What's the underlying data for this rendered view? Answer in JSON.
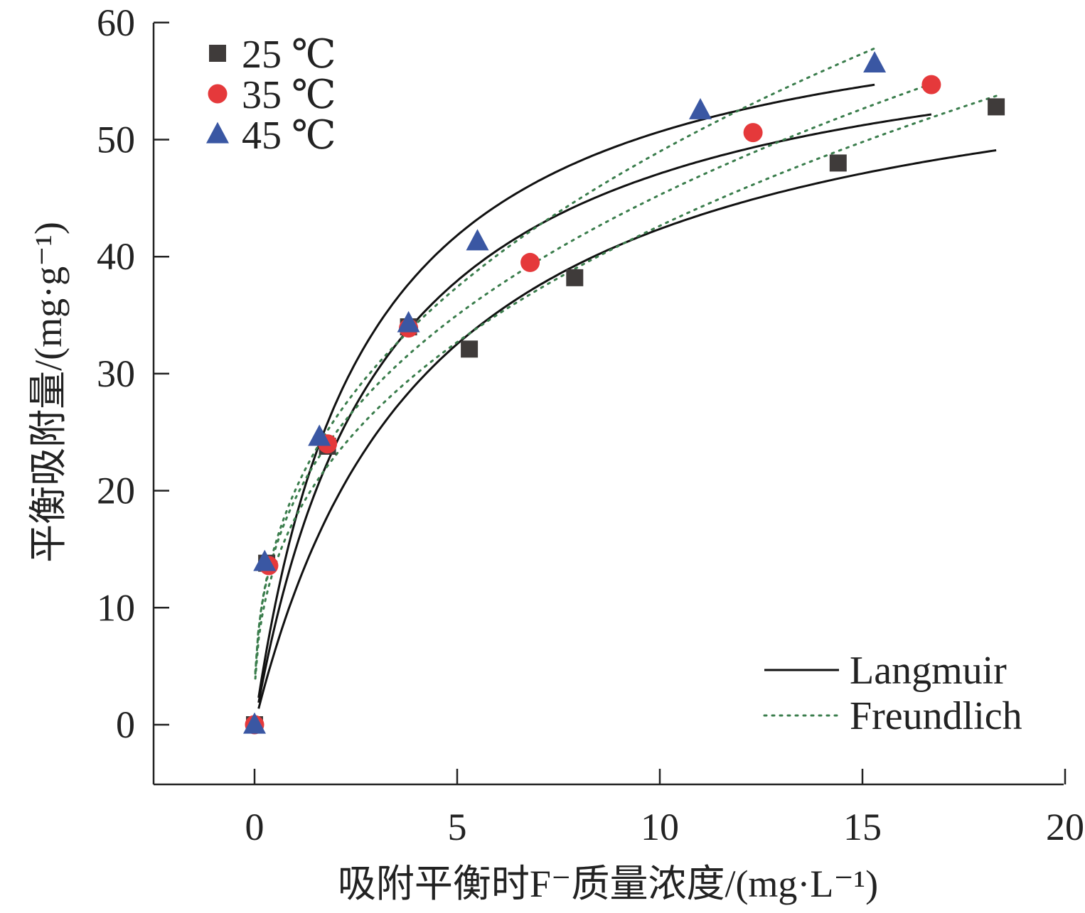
{
  "chart_data": {
    "type": "scatter",
    "xlabel": "吸附平衡时F⁻质量浓度/(mg·L⁻¹)",
    "ylabel": "平衡吸附量/(mg·g⁻¹)",
    "xlim": [
      -2.5,
      20
    ],
    "ylim": [
      -5,
      60
    ],
    "x_ticks": [
      0,
      5,
      10,
      15,
      20
    ],
    "y_ticks": [
      0,
      10,
      20,
      30,
      40,
      50,
      60
    ],
    "grid": false,
    "legend_markers_position": "top-left",
    "legend_lines_position": "bottom-right",
    "series": [
      {
        "name": "25 ℃",
        "marker": "square",
        "color": "#3f3b3a",
        "x": [
          0,
          0.3,
          1.8,
          3.8,
          5.3,
          7.9,
          14.4,
          18.3
        ],
        "y": [
          0,
          13.8,
          23.8,
          34.0,
          32.1,
          38.2,
          48.0,
          52.8
        ]
      },
      {
        "name": "35 ℃",
        "marker": "circle",
        "color": "#e5393b",
        "x": [
          0,
          0.35,
          1.8,
          3.8,
          6.8,
          12.3,
          16.7
        ],
        "y": [
          0,
          13.6,
          24.0,
          33.9,
          39.5,
          50.6,
          54.7
        ]
      },
      {
        "name": "45 ℃",
        "marker": "triangle",
        "color": "#3a57a3",
        "x": [
          0,
          0.25,
          1.6,
          3.8,
          5.5,
          11.0,
          15.3
        ],
        "y": [
          0,
          13.9,
          24.6,
          34.3,
          41.3,
          52.5,
          56.5
        ]
      }
    ],
    "fits": [
      {
        "name": "Langmuir",
        "style": "solid",
        "color": "#111111",
        "for": "25 ℃",
        "x_range": [
          0.1,
          18.3
        ],
        "qm": 60.7,
        "KL": 0.231
      },
      {
        "name": "Langmuir",
        "style": "solid",
        "color": "#111111",
        "for": "35 ℃",
        "x_range": [
          0.1,
          16.7
        ],
        "qm": 62.1,
        "KL": 0.314
      },
      {
        "name": "Langmuir",
        "style": "solid",
        "color": "#111111",
        "for": "45 ℃",
        "x_range": [
          0.1,
          15.3
        ],
        "qm": 64.3,
        "KL": 0.372
      },
      {
        "name": "Freundlich",
        "style": "dotted",
        "color": "#3a7d4c",
        "for": "25 ℃",
        "x_range": [
          0.02,
          18.3
        ],
        "KF": 17.65,
        "n_inv": 0.383
      },
      {
        "name": "Freundlich",
        "style": "dotted",
        "color": "#3a7d4c",
        "for": "35 ℃",
        "x_range": [
          0.02,
          16.7
        ],
        "KF": 19.27,
        "n_inv": 0.371
      },
      {
        "name": "Freundlich",
        "style": "dotted",
        "color": "#3a7d4c",
        "for": "45 ℃",
        "x_range": [
          0.02,
          15.3
        ],
        "KF": 20.0,
        "n_inv": 0.389
      }
    ],
    "legend_lines": [
      {
        "label": "Langmuir",
        "style": "solid",
        "color": "#111111"
      },
      {
        "label": "Freundlich",
        "style": "dotted",
        "color": "#3a7d4c"
      }
    ]
  }
}
